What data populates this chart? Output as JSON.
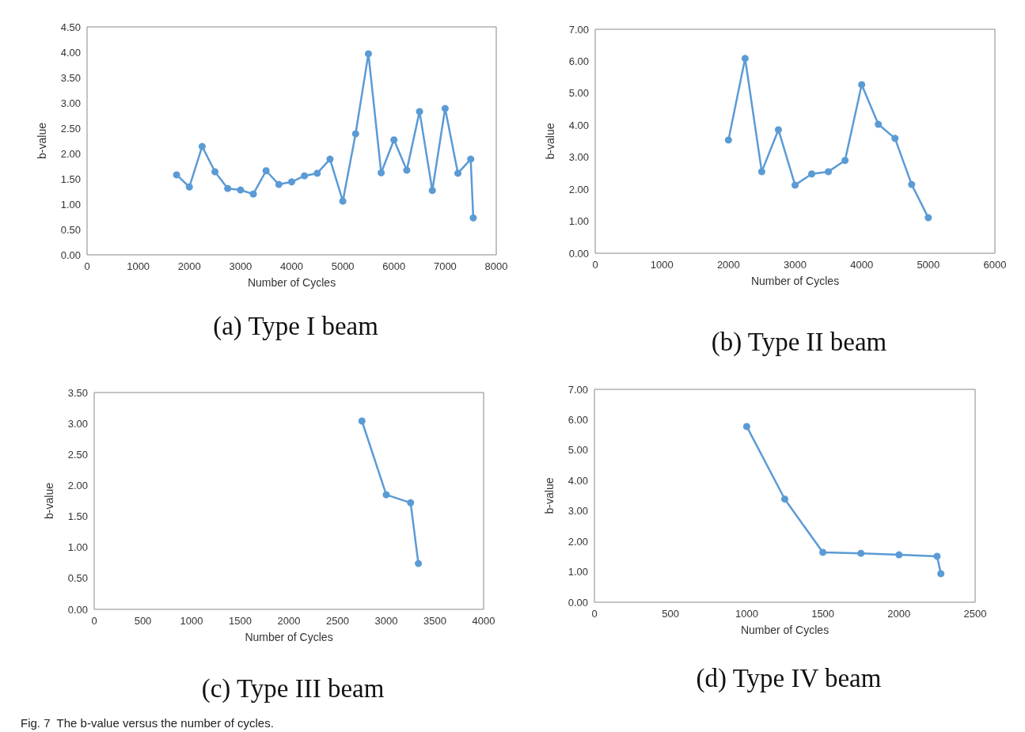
{
  "chart_data": [
    {
      "type": "line",
      "title": "(a) Type I beam",
      "xlabel": "Number of Cycles",
      "ylabel": "b-value",
      "marker": "circle",
      "line_style": "solid",
      "grid": false,
      "x": [
        1750,
        2000,
        2250,
        2500,
        2750,
        3000,
        3250,
        3500,
        3750,
        4000,
        4250,
        4500,
        4750,
        5000,
        5250,
        5500,
        5750,
        6000,
        6250,
        6500,
        6750,
        7000,
        7250,
        7500,
        7550
      ],
      "series": [
        {
          "color": "#5b9bd5",
          "values": [
            1.58,
            1.34,
            2.14,
            1.64,
            1.31,
            1.28,
            1.2,
            1.66,
            1.39,
            1.44,
            1.56,
            1.61,
            1.89,
            1.06,
            2.39,
            3.97,
            1.62,
            2.27,
            1.67,
            2.83,
            1.27,
            2.89,
            1.61,
            1.89,
            0.73
          ]
        }
      ],
      "xlim": [
        0,
        8000
      ],
      "xticks": [
        0,
        1000,
        2000,
        3000,
        4000,
        5000,
        6000,
        7000,
        8000
      ],
      "ylim": [
        0,
        4.5
      ],
      "yticks": [
        {
          "value": 0,
          "label": "0.00"
        },
        {
          "value": 0.5,
          "label": "0.50"
        },
        {
          "value": 1,
          "label": "1.00"
        },
        {
          "value": 1.5,
          "label": "1.50"
        },
        {
          "value": 2,
          "label": "2.00"
        },
        {
          "value": 2.5,
          "label": "2.50"
        },
        {
          "value": 3,
          "label": "3.00"
        },
        {
          "value": 3.5,
          "label": "3.50"
        },
        {
          "value": 4,
          "label": "4.00"
        },
        {
          "value": 4.5,
          "label": "4.50"
        }
      ]
    },
    {
      "type": "line",
      "title": "(b) Type II beam",
      "xlabel": "Number of Cycles",
      "ylabel": "b-value",
      "marker": "circle",
      "line_style": "solid",
      "grid": false,
      "x": [
        2000,
        2250,
        2500,
        2750,
        3000,
        3250,
        3500,
        3750,
        4000,
        4250,
        4500,
        4750,
        5000
      ],
      "series": [
        {
          "color": "#5b9bd5",
          "values": [
            3.54,
            6.09,
            2.55,
            3.86,
            2.13,
            2.48,
            2.55,
            2.9,
            5.27,
            4.03,
            3.59,
            2.15,
            1.11
          ]
        }
      ],
      "xlim": [
        0,
        6000
      ],
      "xticks": [
        0,
        1000,
        2000,
        3000,
        4000,
        5000,
        6000
      ],
      "ylim": [
        0,
        7
      ],
      "yticks": [
        {
          "value": 0,
          "label": "0.00"
        },
        {
          "value": 1,
          "label": "1.00"
        },
        {
          "value": 2,
          "label": "2.00"
        },
        {
          "value": 3,
          "label": "3.00"
        },
        {
          "value": 4,
          "label": "4.00"
        },
        {
          "value": 5,
          "label": "5.00"
        },
        {
          "value": 6,
          "label": "6.00"
        },
        {
          "value": 7,
          "label": "7.00"
        }
      ]
    },
    {
      "type": "line",
      "title": "(c) Type III beam",
      "xlabel": "Number of Cycles",
      "ylabel": "b-value",
      "marker": "circle",
      "line_style": "solid",
      "grid": false,
      "annotations": [
        "Fig. 7  The b-value versus the number of cycles."
      ],
      "x": [
        2750,
        3000,
        3250,
        3330
      ],
      "series": [
        {
          "color": "#5b9bd5",
          "values": [
            3.04,
            1.85,
            1.72,
            0.74
          ]
        }
      ],
      "xlim": [
        0,
        4000
      ],
      "xticks": [
        0,
        500,
        1000,
        1500,
        2000,
        2500,
        3000,
        3500,
        4000
      ],
      "ylim": [
        0,
        3.5
      ],
      "yticks": [
        {
          "value": 0,
          "label": "0.00"
        },
        {
          "value": 0.5,
          "label": "0.50"
        },
        {
          "value": 1,
          "label": "1.00"
        },
        {
          "value": 1.5,
          "label": "1.50"
        },
        {
          "value": 2,
          "label": "2.00"
        },
        {
          "value": 2.5,
          "label": "2.50"
        },
        {
          "value": 3,
          "label": "3.00"
        },
        {
          "value": 3.5,
          "label": "3.50"
        }
      ]
    },
    {
      "type": "line",
      "title": "(d) Type IV beam",
      "xlabel": "Number of Cycles",
      "ylabel": "b-value",
      "marker": "circle",
      "line_style": "solid",
      "grid": false,
      "x": [
        1000,
        1250,
        1500,
        1750,
        2000,
        2250,
        2275
      ],
      "series": [
        {
          "color": "#5b9bd5",
          "values": [
            5.78,
            3.39,
            1.64,
            1.61,
            1.56,
            1.51,
            0.94
          ]
        }
      ],
      "xlim": [
        0,
        2500
      ],
      "xticks": [
        0,
        500,
        1000,
        1500,
        2000,
        2500
      ],
      "ylim": [
        0,
        7
      ],
      "yticks": [
        {
          "value": 0,
          "label": "0.00"
        },
        {
          "value": 1,
          "label": "1.00"
        },
        {
          "value": 2,
          "label": "2.00"
        },
        {
          "value": 3,
          "label": "3.00"
        },
        {
          "value": 4,
          "label": "4.00"
        },
        {
          "value": 5,
          "label": "5.00"
        },
        {
          "value": 6,
          "label": "6.00"
        },
        {
          "value": 7,
          "label": "7.00"
        }
      ]
    }
  ]
}
